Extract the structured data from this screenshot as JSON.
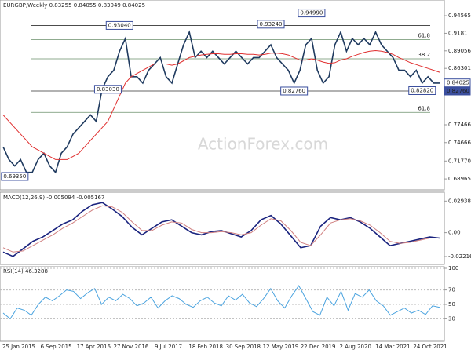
{
  "chart_data": [
    {
      "type": "line",
      "title": "EURGBP,Weekly 0.83255 0.84055 0.83049 0.84025",
      "watermark": "ActionForex.com",
      "x_labels": [
        "25 Jan 2015",
        "6 Sep 2015",
        "17 Apr 2016",
        "27 Nov 2016",
        "9 Jul 2017",
        "18 Feb 2018",
        "30 Sep 2018",
        "12 May 2019",
        "22 Dec 2019",
        "2 Aug 2020",
        "14 Mar 2021",
        "24 Oct 2021"
      ],
      "ylim": [
        0.675,
        0.958
      ],
      "yticks": [
        0.94565,
        0.9181,
        0.89056,
        0.86301,
        0.77466,
        0.74666,
        {
          "value": 0.7177,
          "label": "0.71770"
        },
        0.68965
      ],
      "series": [
        {
          "name": "EURGBP",
          "color": "#1f3a5f",
          "values": [
            0.74,
            0.72,
            0.71,
            0.72,
            0.7,
            0.7,
            0.72,
            0.73,
            0.71,
            0.7,
            0.73,
            0.74,
            0.76,
            0.77,
            0.78,
            0.79,
            0.78,
            0.83,
            0.85,
            0.86,
            0.89,
            0.91,
            0.85,
            0.85,
            0.84,
            0.86,
            0.87,
            0.88,
            0.85,
            0.84,
            0.87,
            0.9,
            0.92,
            0.88,
            0.89,
            0.88,
            0.89,
            0.88,
            0.87,
            0.88,
            0.89,
            0.88,
            0.87,
            0.88,
            0.88,
            0.89,
            0.9,
            0.88,
            0.87,
            0.86,
            0.84,
            0.86,
            0.9,
            0.91,
            0.86,
            0.84,
            0.85,
            0.9,
            0.92,
            0.89,
            0.91,
            0.9,
            0.91,
            0.9,
            0.92,
            0.9,
            0.89,
            0.88,
            0.86,
            0.86,
            0.85,
            0.86,
            0.84,
            0.85,
            0.84,
            0.84
          ]
        },
        {
          "name": "MA",
          "color": "#e03030",
          "values": [
            0.79,
            0.78,
            0.77,
            0.76,
            0.75,
            0.74,
            0.735,
            0.73,
            0.725,
            0.72,
            0.72,
            0.72,
            0.725,
            0.73,
            0.74,
            0.75,
            0.76,
            0.77,
            0.78,
            0.8,
            0.82,
            0.84,
            0.85,
            0.855,
            0.86,
            0.865,
            0.87,
            0.87,
            0.87,
            0.868,
            0.87,
            0.875,
            0.88,
            0.882,
            0.884,
            0.885,
            0.886,
            0.886,
            0.885,
            0.885,
            0.886,
            0.886,
            0.885,
            0.885,
            0.884,
            0.885,
            0.887,
            0.887,
            0.886,
            0.884,
            0.88,
            0.876,
            0.876,
            0.878,
            0.876,
            0.873,
            0.871,
            0.872,
            0.876,
            0.878,
            0.882,
            0.885,
            0.888,
            0.89,
            0.891,
            0.89,
            0.888,
            0.885,
            0.88,
            0.876,
            0.872,
            0.869,
            0.866,
            0.863,
            0.86,
            0.857
          ]
        }
      ],
      "levels": [
        {
          "value": 0.9304,
          "color": "#333333"
        },
        {
          "value": 0.8276,
          "color": "#333333"
        },
        {
          "value": 0.908,
          "label": "61.8",
          "color": "#6a8f6a"
        },
        {
          "value": 0.878,
          "label": "38.2",
          "color": "#6a8f6a"
        },
        {
          "value": 0.794,
          "label": "61.8",
          "color": "#6a8f6a"
        }
      ],
      "annotations": [
        {
          "label": "0.93040",
          "value": 0.9304,
          "at": 20
        },
        {
          "label": "0.93240",
          "value": 0.9324,
          "at": 46
        },
        {
          "label": "0.94990",
          "value": 0.9499,
          "at": 53
        },
        {
          "label": "0.83030",
          "value": 0.8303,
          "at": 18
        },
        {
          "label": "0.82760",
          "value": 0.8276,
          "at": 50
        },
        {
          "label": "0.82820",
          "value": 0.8282,
          "at": 72
        },
        {
          "label": "0.69350",
          "value": 0.6935,
          "at": 2
        }
      ],
      "price_tags": [
        {
          "label": "0.84025",
          "value": 0.84025,
          "color": "#ffffff"
        },
        {
          "label": "0.82760",
          "value": 0.8276,
          "color": "#3b4f9e"
        }
      ]
    },
    {
      "type": "line",
      "title": "MACD(12,26,9) -0.005094 -0.005167",
      "ylim": [
        -0.028,
        0.034
      ],
      "yticks": [
        0.029387,
        {
          "value": 0,
          "label": "0.00"
        },
        -0.022161
      ],
      "series": [
        {
          "name": "MACD",
          "color": "#1a237e",
          "values": [
            -0.018,
            -0.022,
            -0.015,
            -0.008,
            -0.004,
            0.002,
            0.008,
            0.012,
            0.02,
            0.026,
            0.028,
            0.022,
            0.015,
            0.005,
            -0.002,
            0.004,
            0.01,
            0.012,
            0.006,
            0.0,
            -0.002,
            0.001,
            0.002,
            -0.001,
            -0.004,
            0.002,
            0.012,
            0.016,
            0.008,
            -0.003,
            -0.014,
            -0.012,
            0.006,
            0.014,
            0.012,
            0.014,
            0.01,
            0.004,
            -0.004,
            -0.012,
            -0.01,
            -0.008,
            -0.006,
            -0.004,
            -0.005
          ]
        },
        {
          "name": "Signal",
          "color": "#d08080",
          "values": [
            -0.014,
            -0.018,
            -0.017,
            -0.012,
            -0.007,
            -0.002,
            0.004,
            0.009,
            0.015,
            0.021,
            0.025,
            0.024,
            0.019,
            0.01,
            0.002,
            0.002,
            0.007,
            0.01,
            0.009,
            0.003,
            0.0,
            0.0,
            0.001,
            0.0,
            -0.002,
            0.0,
            0.007,
            0.013,
            0.011,
            0.002,
            -0.009,
            -0.012,
            -0.002,
            0.009,
            0.012,
            0.013,
            0.011,
            0.007,
            0.0,
            -0.008,
            -0.01,
            -0.009,
            -0.007,
            -0.005,
            -0.005
          ]
        }
      ]
    },
    {
      "type": "line",
      "title": "RSI(14) 46.3288",
      "ylim": [
        0,
        100
      ],
      "yticks": [
        100,
        70,
        50,
        30
      ],
      "series": [
        {
          "name": "RSI",
          "color": "#4aa3df",
          "values": [
            38,
            30,
            45,
            42,
            35,
            50,
            60,
            55,
            62,
            70,
            68,
            58,
            66,
            72,
            50,
            60,
            55,
            64,
            58,
            48,
            52,
            60,
            45,
            55,
            62,
            58,
            50,
            46,
            55,
            60,
            52,
            48,
            62,
            56,
            64,
            52,
            47,
            58,
            72,
            55,
            45,
            62,
            76,
            58,
            40,
            35,
            60,
            48,
            68,
            42,
            65,
            60,
            70,
            55,
            48,
            35,
            40,
            45,
            38,
            42,
            36,
            48,
            46
          ]
        }
      ]
    }
  ]
}
